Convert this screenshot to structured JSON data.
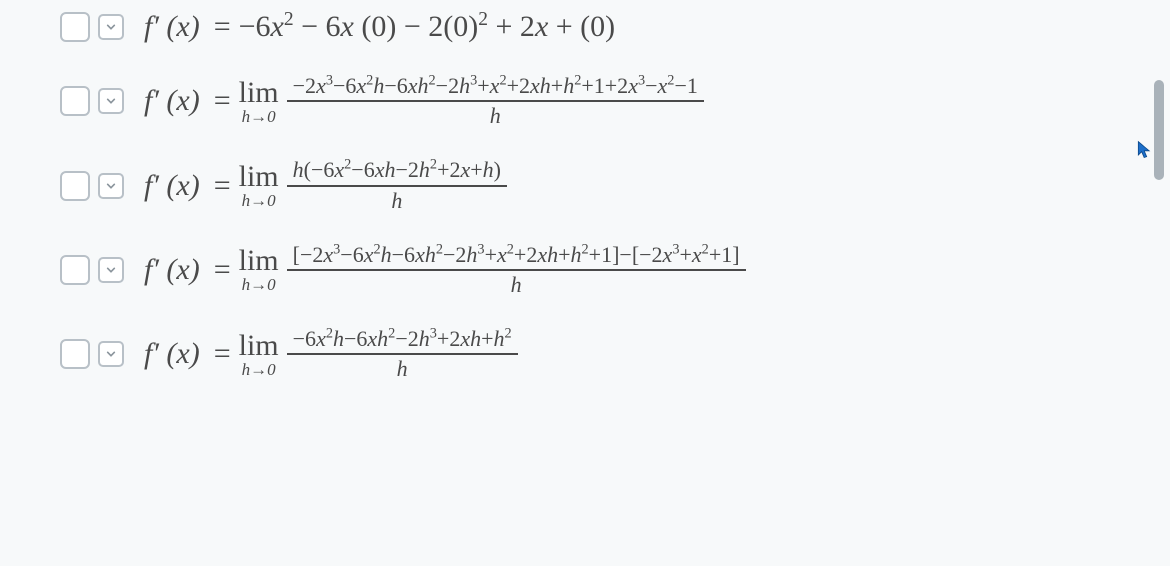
{
  "background_color": "#f7f9fa",
  "text_color": "#4a4a4a",
  "control_border_color": "#b8c0c7",
  "equation_label": "f′ (x)",
  "equals_sign": "=",
  "limit_symbol": "lim",
  "limit_subscript": "h→0",
  "equations": [
    {
      "type": "simple",
      "expression_html": "−6<i>x</i><sup>2</sup> − 6<i>x</i> (0) − 2(0)<sup>2</sup> + 2<i>x</i> + (0)"
    },
    {
      "type": "limit_fraction",
      "numerator_html": "−2<i>x</i><sup>3</sup>−6<i>x</i><sup>2</sup><i>h</i>−6<i>xh</i><sup>2</sup>−2<i>h</i><sup>3</sup>+<i>x</i><sup>2</sup>+2<i>xh</i>+<i>h</i><sup>2</sup>+1+2<i>x</i><sup>3</sup>−<i>x</i><sup>2</sup>−1",
      "denominator_html": "h"
    },
    {
      "type": "limit_fraction",
      "numerator_html": "<i>h</i>(−6<i>x</i><sup>2</sup>−6<i>xh</i>−2<i>h</i><sup>2</sup>+2<i>x</i>+<i>h</i>)",
      "denominator_html": "h"
    },
    {
      "type": "limit_fraction",
      "numerator_html": "[−2<i>x</i><sup>3</sup>−6<i>x</i><sup>2</sup><i>h</i>−6<i>xh</i><sup>2</sup>−2<i>h</i><sup>3</sup>+<i>x</i><sup>2</sup>+2<i>xh</i>+<i>h</i><sup>2</sup>+1]−[−2<i>x</i><sup>3</sup>+<i>x</i><sup>2</sup>+1]",
      "denominator_html": "h"
    },
    {
      "type": "limit_fraction",
      "numerator_html": "−6<i>x</i><sup>2</sup><i>h</i>−6<i>xh</i><sup>2</sup>−2<i>h</i><sup>3</sup>+2<i>xh</i>+<i>h</i><sup>2</sup>",
      "denominator_html": "h"
    }
  ],
  "scroll_thumb_color": "#a9b2b9",
  "font_sizes": {
    "equation_main": 30,
    "fraction": 22,
    "limit_sub": 17
  }
}
